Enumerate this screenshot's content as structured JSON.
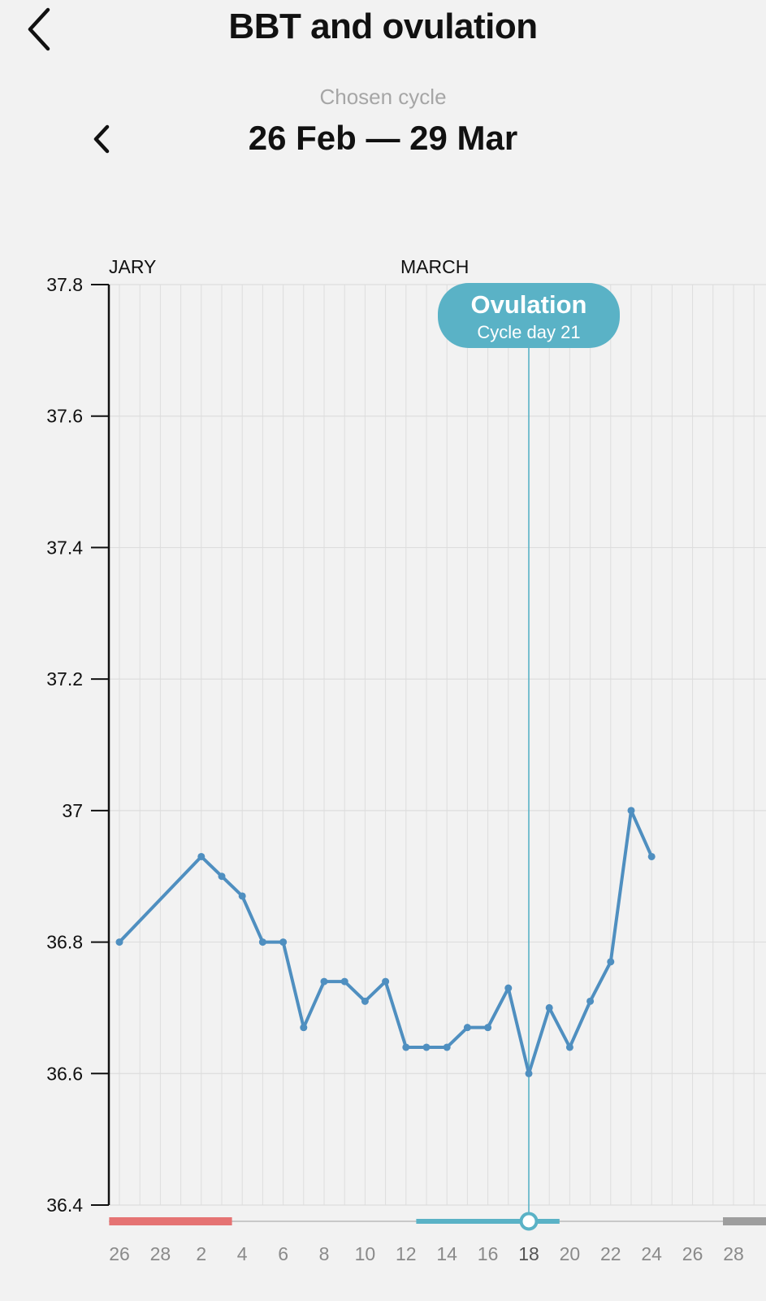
{
  "header": {
    "title": "BBT and ovulation",
    "back_icon": "chevron-left-icon"
  },
  "cycle": {
    "chosen_label": "Chosen cycle",
    "range": "26 Feb — 29 Mar",
    "prev_icon": "chevron-left-icon"
  },
  "ovulation_marker": {
    "title": "Ovulation",
    "subtitle": "Cycle day 21",
    "date_label": "18"
  },
  "colors": {
    "line": "#4f8fc0",
    "ovulation": "#5ab2c6",
    "period": "#e57373",
    "future": "#9e9e9e",
    "track": "#c8c8c8",
    "grid": "#dddddd",
    "axis": "#111111"
  },
  "chart_data": {
    "type": "line",
    "month_labels": [
      "JARY",
      "MARCH"
    ],
    "y_ticks": [
      "37.8",
      "37.6",
      "37.4",
      "37.2",
      "37",
      "36.8",
      "36.6",
      "36.4"
    ],
    "ylim": [
      36.4,
      37.8
    ],
    "x_tick_labels": [
      "26",
      "28",
      "2",
      "4",
      "6",
      "8",
      "10",
      "12",
      "14",
      "16",
      "18",
      "20",
      "22",
      "24",
      "26",
      "28"
    ],
    "x": [
      "Feb 26",
      "Mar 2",
      "Mar 3",
      "Mar 4",
      "Mar 5",
      "Mar 6",
      "Mar 7",
      "Mar 8",
      "Mar 9",
      "Mar 10",
      "Mar 11",
      "Mar 12",
      "Mar 13",
      "Mar 14",
      "Mar 15",
      "Mar 16",
      "Mar 17",
      "Mar 18",
      "Mar 19",
      "Mar 20",
      "Mar 21",
      "Mar 22",
      "Mar 23",
      "Mar 24"
    ],
    "series": [
      {
        "values": [
          36.8,
          36.93,
          36.9,
          36.87,
          36.8,
          36.8,
          36.67,
          36.74,
          36.74,
          36.71,
          36.74,
          36.64,
          36.64,
          36.64,
          36.67,
          36.67,
          36.73,
          36.6,
          36.7,
          36.64,
          36.71,
          36.77,
          37.0,
          36.93
        ]
      }
    ],
    "ovulation_date": "Mar 18",
    "period_range": [
      "Feb 26",
      "Mar 3"
    ],
    "fertile_range": [
      "Mar 13",
      "Mar 19"
    ],
    "grid": true
  }
}
